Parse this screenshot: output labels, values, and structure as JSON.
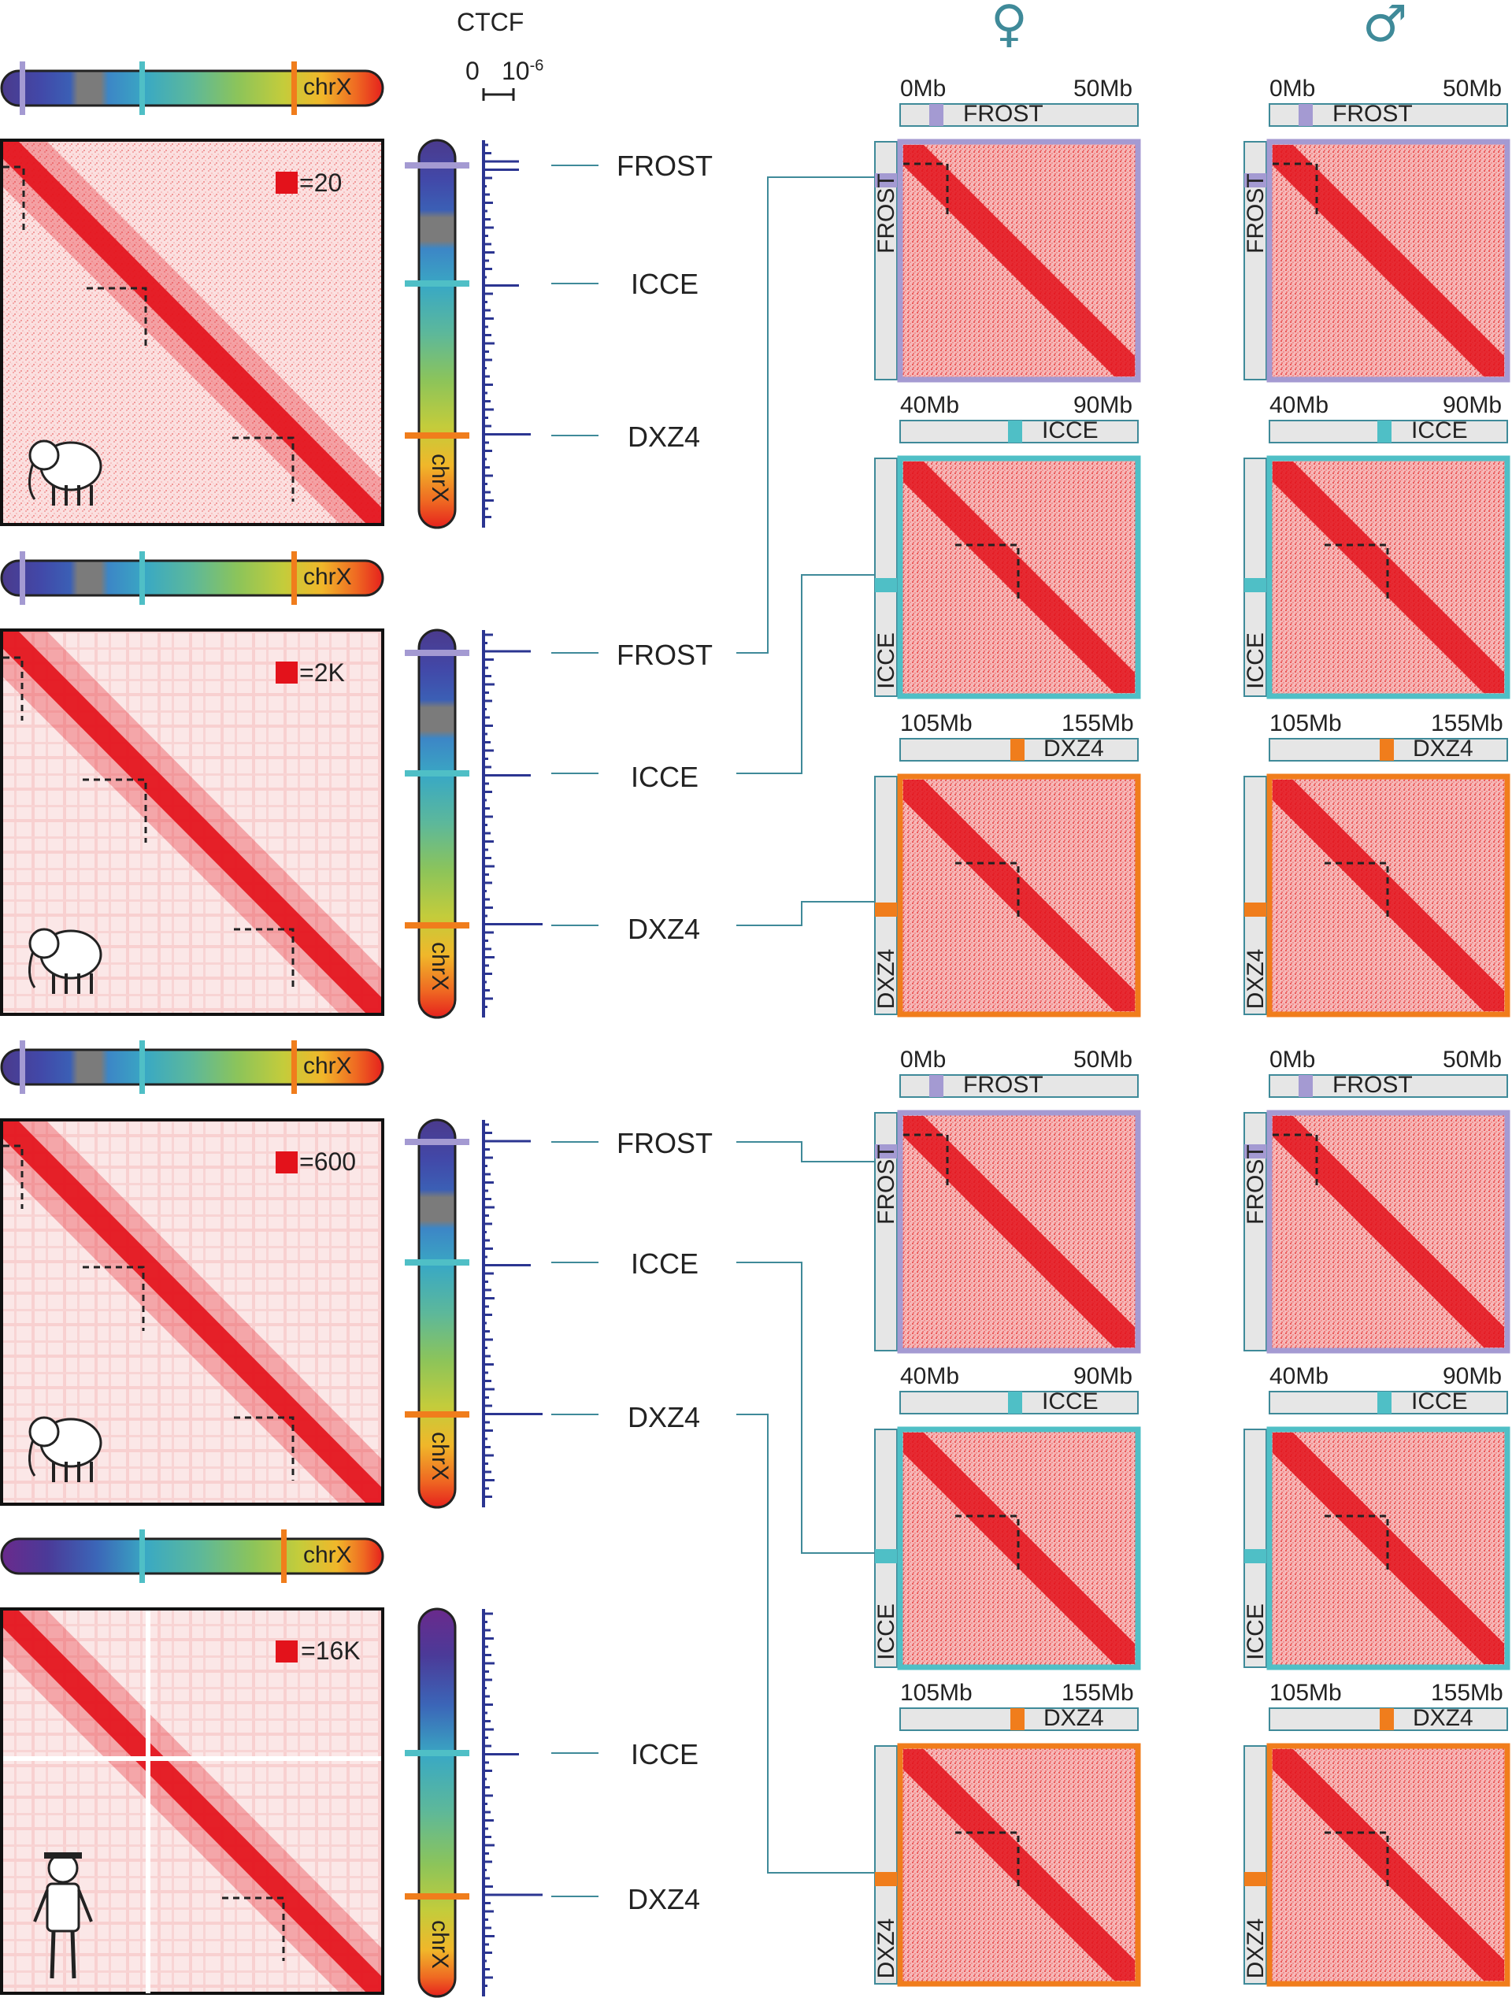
{
  "header": {
    "ctcf_title": "CTCF",
    "ctcf_scale_min": "0",
    "ctcf_scale_max_base": "10",
    "ctcf_scale_max_exp": "-6",
    "female_symbol": "♀",
    "male_symbol": "♂"
  },
  "colors": {
    "frost": "#a49ad2",
    "icce": "#4fbfc6",
    "dxz4": "#f07d1c",
    "ctcf": "#2b3591",
    "heat": "#e3121b",
    "connector": "#3f8a99"
  },
  "chrx_label": "chrX",
  "species": [
    {
      "name_icon": "mammoth-icon",
      "legend": "=20",
      "loci": [
        "FROST",
        "ICCE",
        "DXZ4"
      ]
    },
    {
      "name_icon": "asian-elephant-icon",
      "legend": "=2K",
      "loci": [
        "FROST",
        "ICCE",
        "DXZ4"
      ]
    },
    {
      "name_icon": "african-elephant-icon",
      "legend": "=600",
      "loci": [
        "FROST",
        "ICCE",
        "DXZ4"
      ]
    },
    {
      "name_icon": "human-icon",
      "legend": "=16K",
      "loci": [
        "ICCE",
        "DXZ4"
      ]
    }
  ],
  "zoom_panels": [
    {
      "region": "FROST",
      "start": "0Mb",
      "end": "50Mb"
    },
    {
      "region": "ICCE",
      "start": "40Mb",
      "end": "90Mb"
    },
    {
      "region": "DXZ4",
      "start": "105Mb",
      "end": "155Mb"
    },
    {
      "region": "FROST",
      "start": "0Mb",
      "end": "50Mb"
    },
    {
      "region": "ICCE",
      "start": "40Mb",
      "end": "90Mb"
    },
    {
      "region": "DXZ4",
      "start": "105Mb",
      "end": "155Mb"
    }
  ]
}
